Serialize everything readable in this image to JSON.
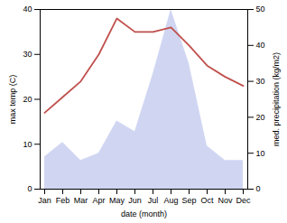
{
  "chart_data": {
    "type": "line",
    "categories": [
      "Jan",
      "Feb",
      "Mar",
      "Apr",
      "May",
      "Jun",
      "Jul",
      "Aug",
      "Sep",
      "Oct",
      "Nov",
      "Dec"
    ],
    "xlabel": "date (month)",
    "ylabel": "max temp (C)",
    "y2label": "med. precipitation (kg/m2)",
    "series": [
      {
        "type": "area",
        "axis": "y2",
        "color": "#aab4e8",
        "values": [
          9,
          13,
          8,
          10,
          19,
          16,
          32,
          50,
          35,
          12,
          8,
          8
        ]
      },
      {
        "type": "line",
        "color": "#c0504d",
        "values": [
          17,
          20.5,
          24,
          30,
          38,
          35,
          35,
          36,
          32,
          27.5,
          25,
          23
        ]
      }
    ],
    "ylim": [
      0,
      40
    ],
    "yticks": [
      0,
      10,
      20,
      30,
      40
    ],
    "y2lim": [
      0,
      50
    ],
    "y2ticks": [
      0,
      10,
      20,
      30,
      40,
      50
    ]
  }
}
